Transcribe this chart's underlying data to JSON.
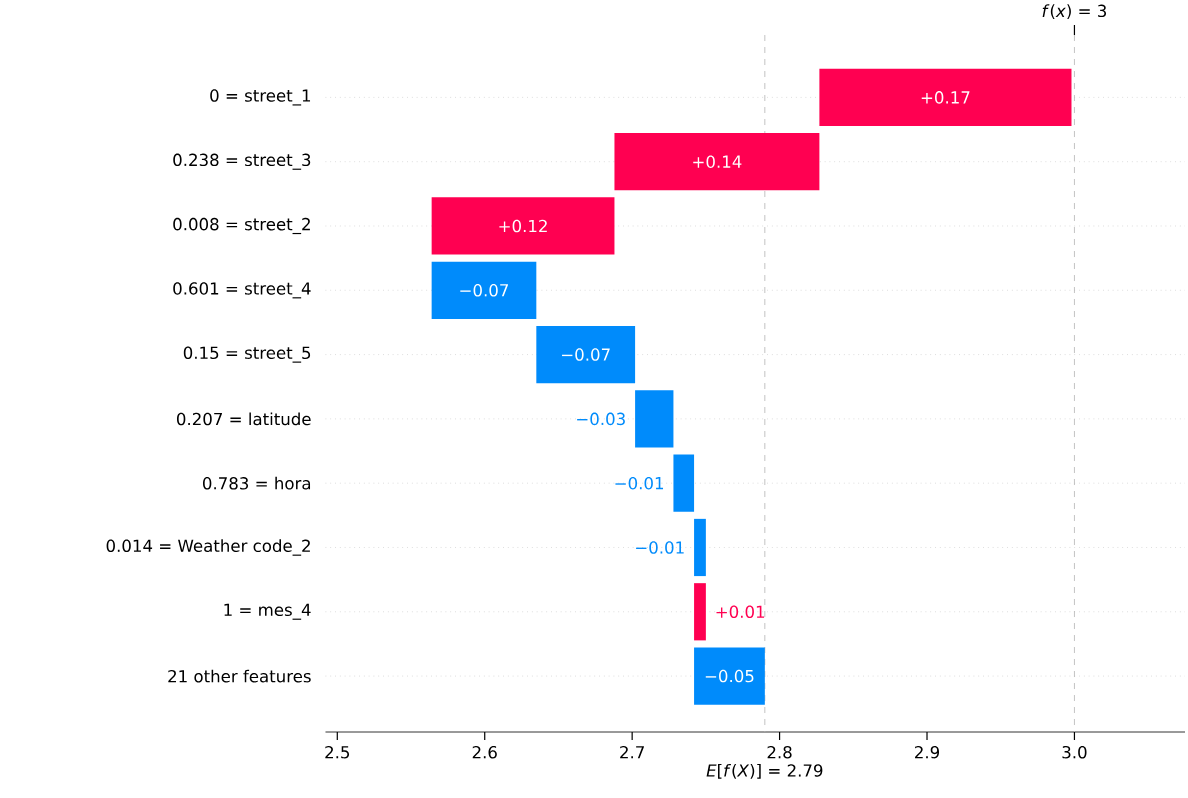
{
  "chart_data": {
    "type": "bar",
    "orientation": "horizontal",
    "categories": [
      "0 = street_1",
      "0.238 = street_3",
      "0.008 = street_2",
      "0.601 = street_4",
      "0.15 = street_5",
      "0.207 = latitude",
      "0.783 = hora",
      "0.014 = Weather code_2",
      "1 = mes_4",
      "21 other features"
    ],
    "values": [
      0.171,
      0.139,
      0.124,
      -0.071,
      -0.067,
      -0.026,
      -0.014,
      -0.008,
      0.008,
      -0.048
    ],
    "base": [
      2.827,
      2.688,
      2.564,
      2.635,
      2.702,
      2.728,
      2.742,
      2.75,
      2.742,
      2.79
    ],
    "colors": [
      "#ff0051",
      "#ff0051",
      "#ff0051",
      "#008bfb",
      "#008bfb",
      "#008bfb",
      "#008bfb",
      "#008bfb",
      "#ff0051",
      "#008bfb"
    ],
    "value_labels": [
      "+0.17",
      "+0.14",
      "+0.12",
      "−0.07",
      "−0.07",
      "−0.03",
      "−0.01",
      "−0.01",
      "+0.01",
      "−0.05"
    ],
    "xlim": [
      2.492,
      3.075
    ],
    "xticks": [
      2.5,
      2.6,
      2.7,
      2.8,
      2.9,
      {
        "value": 3.0,
        "label": "3.0"
      }
    ],
    "grid": "y",
    "ref_lines": [
      {
        "axis": "x",
        "value": 3.0,
        "label": "*f*(*x*) = 3"
      },
      {
        "axis": "x",
        "value": 2.79,
        "label": "*E*[*f*(*X*)] = 2.79"
      }
    ]
  }
}
